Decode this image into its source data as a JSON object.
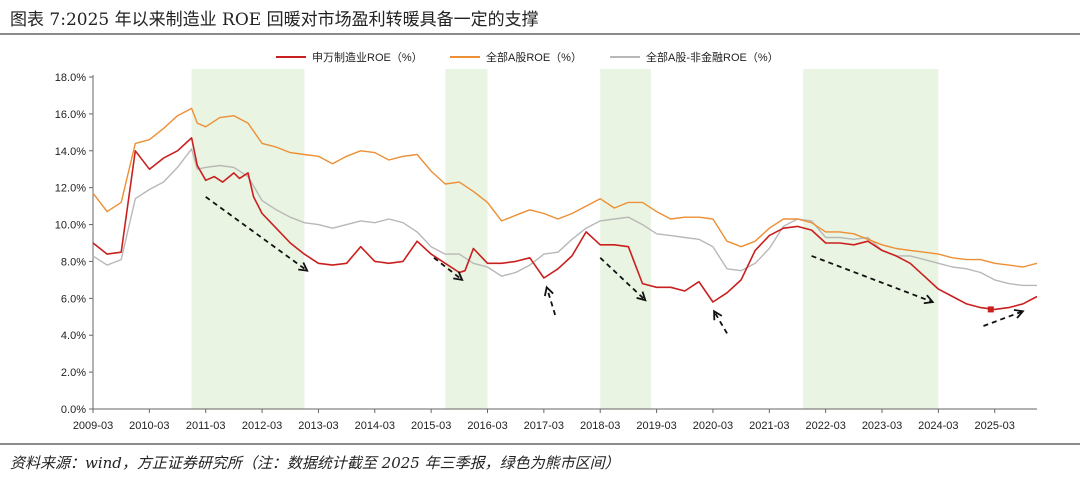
{
  "title": "图表 7:2025 年以来制造业 ROE 回暖对市场盈利转暖具备一定的支撑",
  "source": "资料来源：wind，方正证券研究所（注：数据统计截至 2025 年三季报，绿色为熊市区间）",
  "chart_data": {
    "type": "line",
    "y_ticks": [
      "0.0%",
      "2.0%",
      "4.0%",
      "6.0%",
      "8.0%",
      "10.0%",
      "12.0%",
      "14.0%",
      "16.0%",
      "18.0%"
    ],
    "x_ticks": [
      "2009-03",
      "2010-03",
      "2011-03",
      "2012-03",
      "2013-03",
      "2014-03",
      "2015-03",
      "2016-03",
      "2017-03",
      "2018-03",
      "2019-03",
      "2020-03",
      "2021-03",
      "2022-03",
      "2023-03",
      "2024-03",
      "2025-03"
    ],
    "ylim": [
      0,
      18
    ],
    "xlim": [
      2009.0,
      2025.75
    ],
    "bear_periods": [
      [
        2010.75,
        2012.75
      ],
      [
        2015.25,
        2016.0
      ],
      [
        2018.0,
        2018.9
      ],
      [
        2021.6,
        2024.0
      ]
    ],
    "colors": {
      "shade": "#eaf4e3",
      "axis": "#666666"
    },
    "series": [
      {
        "name": "申万制造业ROE（%）",
        "color": "#c9201f",
        "x": [
          2009.0,
          2009.25,
          2009.5,
          2009.75,
          2010.0,
          2010.25,
          2010.5,
          2010.75,
          2010.85,
          2011.0,
          2011.15,
          2011.3,
          2011.5,
          2011.6,
          2011.75,
          2011.85,
          2012.0,
          2012.25,
          2012.5,
          2012.75,
          2013.0,
          2013.25,
          2013.5,
          2013.75,
          2014.0,
          2014.25,
          2014.5,
          2014.75,
          2015.0,
          2015.25,
          2015.5,
          2015.6,
          2015.75,
          2016.0,
          2016.25,
          2016.5,
          2016.75,
          2017.0,
          2017.25,
          2017.5,
          2017.75,
          2018.0,
          2018.25,
          2018.5,
          2018.75,
          2019.0,
          2019.25,
          2019.5,
          2019.75,
          2020.0,
          2020.25,
          2020.5,
          2020.75,
          2021.0,
          2021.25,
          2021.5,
          2021.75,
          2022.0,
          2022.25,
          2022.5,
          2022.75,
          2023.0,
          2023.25,
          2023.5,
          2023.75,
          2024.0,
          2024.25,
          2024.5,
          2024.75,
          2025.0,
          2025.25,
          2025.5,
          2025.75
        ],
        "y": [
          9.0,
          8.4,
          8.5,
          14.0,
          13.0,
          13.6,
          14.0,
          14.7,
          13.2,
          12.4,
          12.6,
          12.3,
          12.8,
          12.5,
          12.8,
          11.5,
          10.6,
          9.8,
          9.0,
          8.4,
          7.9,
          7.8,
          7.9,
          8.8,
          8.0,
          7.9,
          8.0,
          9.1,
          8.4,
          7.9,
          7.4,
          7.5,
          8.7,
          7.9,
          7.9,
          8.0,
          8.2,
          7.1,
          7.6,
          8.3,
          9.6,
          8.9,
          8.9,
          8.8,
          6.8,
          6.6,
          6.6,
          6.4,
          6.9,
          5.8,
          6.3,
          7.0,
          8.6,
          9.4,
          9.8,
          9.9,
          9.7,
          9.0,
          9.0,
          8.9,
          9.1,
          8.6,
          8.3,
          7.9,
          7.2,
          6.5,
          6.1,
          5.7,
          5.5,
          5.4,
          5.5,
          5.7,
          6.1
        ]
      },
      {
        "name": "全部A股ROE（%）",
        "color": "#ed8f34",
        "x": [
          2009.0,
          2009.25,
          2009.5,
          2009.75,
          2010.0,
          2010.25,
          2010.5,
          2010.75,
          2010.85,
          2011.0,
          2011.25,
          2011.5,
          2011.75,
          2012.0,
          2012.25,
          2012.5,
          2012.75,
          2013.0,
          2013.25,
          2013.5,
          2013.75,
          2014.0,
          2014.25,
          2014.5,
          2014.75,
          2015.0,
          2015.25,
          2015.5,
          2015.75,
          2016.0,
          2016.25,
          2016.5,
          2016.75,
          2017.0,
          2017.25,
          2017.5,
          2017.75,
          2018.0,
          2018.25,
          2018.5,
          2018.75,
          2019.0,
          2019.25,
          2019.5,
          2019.75,
          2020.0,
          2020.25,
          2020.5,
          2020.75,
          2021.0,
          2021.25,
          2021.5,
          2021.75,
          2022.0,
          2022.25,
          2022.5,
          2022.75,
          2023.0,
          2023.25,
          2023.5,
          2023.75,
          2024.0,
          2024.25,
          2024.5,
          2024.75,
          2025.0,
          2025.25,
          2025.5,
          2025.75
        ],
        "y": [
          11.7,
          10.7,
          11.2,
          14.4,
          14.6,
          15.2,
          15.9,
          16.3,
          15.5,
          15.3,
          15.8,
          15.9,
          15.5,
          14.4,
          14.2,
          13.9,
          13.8,
          13.7,
          13.3,
          13.7,
          14.0,
          13.9,
          13.5,
          13.7,
          13.8,
          12.9,
          12.2,
          12.3,
          11.8,
          11.2,
          10.2,
          10.5,
          10.8,
          10.6,
          10.3,
          10.6,
          11.0,
          11.4,
          10.9,
          11.2,
          11.2,
          10.7,
          10.3,
          10.4,
          10.4,
          10.3,
          9.1,
          8.8,
          9.1,
          9.8,
          10.3,
          10.3,
          10.1,
          9.6,
          9.6,
          9.5,
          9.2,
          8.9,
          8.7,
          8.6,
          8.5,
          8.4,
          8.2,
          8.1,
          8.1,
          7.9,
          7.8,
          7.7,
          7.9
        ]
      },
      {
        "name": "全部A股-非金融ROE（%）",
        "color": "#b8b8b8",
        "x": [
          2009.0,
          2009.25,
          2009.5,
          2009.75,
          2010.0,
          2010.25,
          2010.5,
          2010.75,
          2010.85,
          2011.0,
          2011.25,
          2011.5,
          2011.75,
          2012.0,
          2012.25,
          2012.5,
          2012.75,
          2013.0,
          2013.25,
          2013.5,
          2013.75,
          2014.0,
          2014.25,
          2014.5,
          2014.75,
          2015.0,
          2015.25,
          2015.5,
          2015.75,
          2016.0,
          2016.25,
          2016.5,
          2016.75,
          2017.0,
          2017.25,
          2017.5,
          2017.75,
          2018.0,
          2018.25,
          2018.5,
          2018.75,
          2019.0,
          2019.25,
          2019.5,
          2019.75,
          2020.0,
          2020.25,
          2020.5,
          2020.75,
          2021.0,
          2021.25,
          2021.5,
          2021.75,
          2022.0,
          2022.25,
          2022.5,
          2022.75,
          2023.0,
          2023.25,
          2023.5,
          2023.75,
          2024.0,
          2024.25,
          2024.5,
          2024.75,
          2025.0,
          2025.25,
          2025.5,
          2025.75
        ],
        "y": [
          8.3,
          7.8,
          8.1,
          11.4,
          11.9,
          12.3,
          13.1,
          14.1,
          13.0,
          13.1,
          13.2,
          13.1,
          12.6,
          11.3,
          10.8,
          10.4,
          10.1,
          10.0,
          9.8,
          10.0,
          10.2,
          10.1,
          10.3,
          10.1,
          9.6,
          8.8,
          8.4,
          8.4,
          7.9,
          7.7,
          7.2,
          7.4,
          7.8,
          8.4,
          8.5,
          9.2,
          9.8,
          10.2,
          10.3,
          10.4,
          10.0,
          9.5,
          9.4,
          9.3,
          9.2,
          8.8,
          7.6,
          7.5,
          7.9,
          8.7,
          9.9,
          10.3,
          10.2,
          9.3,
          9.3,
          9.2,
          9.3,
          8.6,
          8.3,
          8.3,
          8.1,
          7.9,
          7.7,
          7.6,
          7.4,
          7.0,
          6.8,
          6.7,
          6.7
        ]
      }
    ],
    "arrows": [
      {
        "from": [
          2011.0,
          11.5
        ],
        "to": [
          2012.8,
          7.5
        ]
      },
      {
        "from": [
          2015.05,
          8.2
        ],
        "to": [
          2015.55,
          7.0
        ]
      },
      {
        "from": [
          2017.2,
          5.1
        ],
        "to": [
          2017.05,
          6.6
        ]
      },
      {
        "from": [
          2018.0,
          8.2
        ],
        "to": [
          2018.8,
          5.9
        ]
      },
      {
        "from": [
          2020.25,
          4.1
        ],
        "to": [
          2020.02,
          5.3
        ]
      },
      {
        "from": [
          2021.75,
          8.3
        ],
        "to": [
          2023.9,
          5.8
        ]
      },
      {
        "from": [
          2024.8,
          4.5
        ],
        "to": [
          2025.5,
          5.3
        ]
      }
    ],
    "marker": {
      "x": 2024.93,
      "y": 5.4,
      "color": "#c9201f"
    }
  }
}
